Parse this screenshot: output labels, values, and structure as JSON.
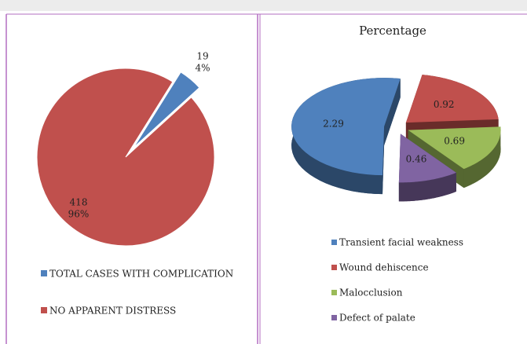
{
  "chart_data": [
    {
      "type": "pie",
      "categories": [
        "TOTAL CASES WITH COMPLICATION",
        "NO APPARENT DISTRESS"
      ],
      "values": [
        19,
        418
      ],
      "percentages": [
        4,
        96
      ],
      "percentage_labels": [
        "4%",
        "96%"
      ],
      "colors": [
        "#4f81bd",
        "#c0504d"
      ]
    },
    {
      "type": "pie3d",
      "title": "Percentage",
      "categories": [
        "Transient facial weakness",
        "Wound dehiscence",
        "Malocclusion",
        "Defect of palate"
      ],
      "values": [
        2.29,
        0.92,
        0.69,
        0.46
      ],
      "colors": [
        "#4f81bd",
        "#c0504d",
        "#9bbb59",
        "#8064a2"
      ]
    }
  ]
}
